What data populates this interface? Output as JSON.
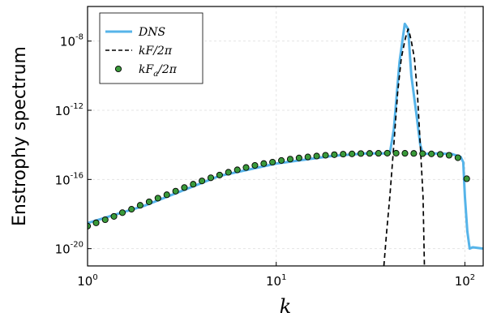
{
  "chart_data": {
    "type": "line",
    "xlabel": "k",
    "ylabel": "Enstrophy spectrum",
    "xscale": "log",
    "yscale": "log",
    "xlim": [
      1,
      125
    ],
    "ylim": [
      1e-21,
      1e-06
    ],
    "x_ticks": [
      {
        "base": "10",
        "exp": "0",
        "value": 1
      },
      {
        "base": "10",
        "exp": "1",
        "value": 10
      },
      {
        "base": "10",
        "exp": "2",
        "value": 100
      }
    ],
    "y_ticks": [
      {
        "base": "10",
        "exp": "-20",
        "value": 1e-20
      },
      {
        "base": "10",
        "exp": "-16",
        "value": 1e-16
      },
      {
        "base": "10",
        "exp": "-12",
        "value": 1e-12
      },
      {
        "base": "10",
        "exp": "-8",
        "value": 1e-08
      }
    ],
    "grid": true,
    "legend_position": "top-left",
    "legend": [
      "DNS",
      "kF/2π",
      "kF_a/2π"
    ],
    "series": [
      {
        "name": "DNS",
        "style": "solid",
        "color": "#56b4e9",
        "x": [
          1,
          2,
          5,
          10,
          20,
          30,
          36,
          40,
          42,
          45,
          48,
          50,
          52,
          55,
          58,
          60,
          70,
          85,
          95,
          98,
          100,
          103,
          106,
          110,
          125
        ],
        "y": [
          3e-19,
          3e-18,
          1.6e-16,
          8.3e-16,
          2.3e-15,
          3.2e-15,
          3.2e-15,
          3.2e-15,
          8e-14,
          6e-10,
          1e-07,
          5e-08,
          1e-10,
          1e-12,
          1e-14,
          3e-15,
          3.2e-15,
          3e-15,
          2e-15,
          1e-15,
          1e-17,
          1e-19,
          1e-20,
          1.2e-20,
          1e-20
        ]
      },
      {
        "name": "kF/2π",
        "style": "dashed",
        "color": "#000000",
        "x": [
          37.2,
          38.5,
          40,
          42,
          44,
          46,
          48,
          49,
          50,
          51,
          52,
          54,
          56,
          58,
          60,
          61
        ],
        "y": [
          1e-21,
          1e-19,
          1e-17,
          1e-14,
          1e-11,
          1e-09,
          1e-08,
          2.5e-08,
          5e-08,
          2.5e-08,
          1e-08,
          1e-09,
          1e-11,
          1e-14,
          1e-17,
          1e-21
        ]
      },
      {
        "name": "kF_a/2π",
        "style": "markers",
        "color": "#3a9a3a",
        "x": [
          1,
          1.11,
          1.24,
          1.38,
          1.53,
          1.71,
          1.9,
          2.12,
          2.36,
          2.63,
          2.93,
          3.26,
          3.63,
          4.04,
          4.5,
          5.01,
          5.58,
          6.22,
          6.92,
          7.71,
          8.59,
          9.56,
          10.65,
          11.86,
          13.21,
          14.71,
          16.38,
          18.25,
          20.32,
          22.63,
          25.21,
          28.08,
          31.27,
          34.83,
          38.79,
          43.2,
          48.11,
          53.58,
          59.68,
          66.47,
          74.03,
          82.44,
          91.82,
          102.26
        ],
        "y": [
          2e-19,
          3.1e-19,
          4.7e-19,
          7.3e-19,
          1.2e-18,
          1.9e-18,
          3.2e-18,
          5.1e-18,
          8.3e-18,
          1.3e-17,
          2.1e-17,
          3.4e-17,
          5.3e-17,
          8.2e-17,
          1.25e-16,
          1.8e-16,
          2.6e-16,
          3.6e-16,
          4.9e-16,
          6.5e-16,
          8.3e-16,
          1e-15,
          1.25e-15,
          1.5e-15,
          1.75e-15,
          2e-15,
          2.25e-15,
          2.5e-15,
          2.7e-15,
          2.9e-15,
          3e-15,
          3.15e-15,
          3.2e-15,
          3.25e-15,
          3.3e-15,
          3.3e-15,
          3.25e-15,
          3.2e-15,
          3.1e-15,
          3e-15,
          2.8e-15,
          2.5e-15,
          1.8e-15,
          1.1e-16
        ]
      }
    ]
  }
}
